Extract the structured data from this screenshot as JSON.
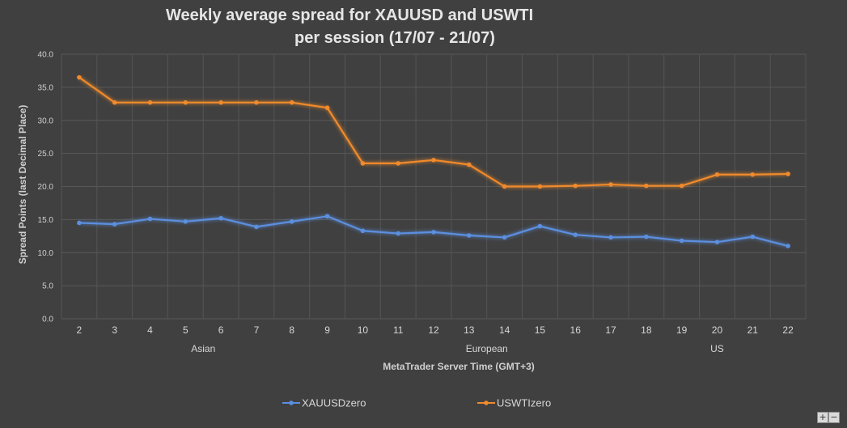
{
  "chart_data": {
    "type": "line",
    "title_line1": "Weekly average spread for XAUUSD and USWTI",
    "title_line2": "per session (17/07 - 21/07)",
    "ylabel": "Spread Points  (last Decimal Place)",
    "xlabel": "MetaTrader Server Time (GMT+3)",
    "ylim": [
      0,
      40
    ],
    "y_ticks": [
      "0.0",
      "5.0",
      "10.0",
      "15.0",
      "20.0",
      "25.0",
      "30.0",
      "35.0",
      "40.0"
    ],
    "categories": [
      "2",
      "3",
      "4",
      "5",
      "6",
      "7",
      "8",
      "9",
      "10",
      "11",
      "12",
      "13",
      "14",
      "15",
      "16",
      "17",
      "18",
      "19",
      "20",
      "21",
      "22"
    ],
    "sessions": [
      {
        "label": "Asian",
        "start": 0,
        "end": 7
      },
      {
        "label": "European",
        "start": 8,
        "end": 15
      },
      {
        "label": "US",
        "start": 16,
        "end": 20
      }
    ],
    "grid": true,
    "legend_position": "bottom",
    "series": [
      {
        "name": "XAUUSDzero",
        "color": "#5b8fe0",
        "values": [
          14.5,
          14.3,
          15.1,
          14.7,
          15.2,
          13.9,
          14.7,
          15.5,
          13.3,
          12.9,
          13.1,
          12.6,
          12.3,
          14.0,
          12.7,
          12.3,
          12.4,
          11.8,
          11.6,
          12.4,
          11.0
        ]
      },
      {
        "name": "USWTIzero",
        "color": "#f08a2c",
        "values": [
          36.5,
          32.7,
          32.7,
          32.7,
          32.7,
          32.7,
          32.7,
          31.9,
          23.5,
          23.5,
          24.0,
          23.3,
          20.0,
          20.0,
          20.1,
          20.3,
          20.1,
          20.1,
          21.8,
          21.8,
          21.9
        ]
      }
    ]
  },
  "controls": {
    "zoom_in": "+",
    "zoom_out": "−"
  }
}
